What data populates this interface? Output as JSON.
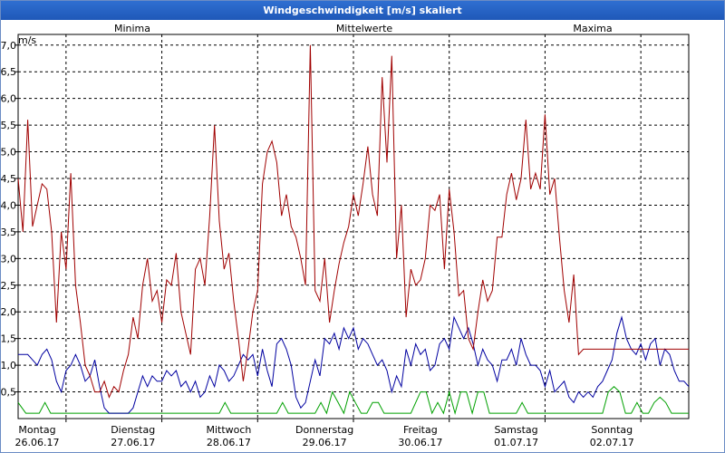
{
  "window": {
    "title": "Windgeschwindigkeit [m/s] skaliert"
  },
  "chart_data": {
    "type": "line",
    "title": "Windgeschwindigkeit [m/s] skaliert",
    "ylabel": "m/s",
    "xlabel": "",
    "ylim": [
      0,
      7.2
    ],
    "grid": true,
    "legend_placement": "top",
    "yticks": [
      "0,5",
      "1,0",
      "1,5",
      "2,0",
      "2,5",
      "3,0",
      "3,5",
      "4,0",
      "4,5",
      "5,0",
      "5,5",
      "6,0",
      "6,5",
      "7,0"
    ],
    "ytick_values": [
      0.5,
      1.0,
      1.5,
      2.0,
      2.5,
      3.0,
      3.5,
      4.0,
      4.5,
      5.0,
      5.5,
      6.0,
      6.5,
      7.0
    ],
    "x_day_labels": [
      {
        "day": "Montag",
        "date": "26.06.17"
      },
      {
        "day": "Dienstag",
        "date": "27.06.17"
      },
      {
        "day": "Mittwoch",
        "date": "28.06.17"
      },
      {
        "day": "Donnerstag",
        "date": "29.06.17"
      },
      {
        "day": "Freitag",
        "date": "30.06.17"
      },
      {
        "day": "Samstag",
        "date": "01.07.17"
      },
      {
        "day": "Sonntag",
        "date": "02.07.17"
      }
    ],
    "x_range_days": [
      0,
      7
    ],
    "series": [
      {
        "name": "Minima",
        "color": "#00a000",
        "x": [
          0.0,
          0.08,
          0.22,
          0.28,
          0.34,
          0.5,
          1.0,
          1.5,
          2.0,
          2.1,
          2.16,
          2.22,
          2.5,
          2.6,
          2.7,
          2.76,
          2.82,
          3.0,
          3.1,
          3.16,
          3.22,
          3.28,
          3.34,
          3.4,
          3.46,
          3.52,
          3.58,
          3.64,
          3.7,
          3.76,
          3.82,
          3.88,
          4.0,
          4.1,
          4.2,
          4.26,
          4.32,
          4.38,
          4.44,
          4.5,
          4.56,
          4.62,
          4.68,
          4.74,
          4.8,
          4.86,
          4.92,
          5.0,
          5.2,
          5.26,
          5.32,
          5.4,
          5.8,
          6.0,
          6.1,
          6.16,
          6.22,
          6.28,
          6.34,
          6.4,
          6.46,
          6.52,
          6.58,
          6.64,
          6.7,
          6.76,
          6.82,
          6.88,
          6.94,
          7.0
        ],
        "y": [
          0.3,
          0.1,
          0.1,
          0.3,
          0.1,
          0.1,
          0.1,
          0.1,
          0.1,
          0.1,
          0.3,
          0.1,
          0.1,
          0.1,
          0.1,
          0.3,
          0.1,
          0.1,
          0.1,
          0.3,
          0.1,
          0.5,
          0.3,
          0.1,
          0.5,
          0.3,
          0.1,
          0.1,
          0.3,
          0.3,
          0.1,
          0.1,
          0.1,
          0.1,
          0.5,
          0.5,
          0.1,
          0.3,
          0.1,
          0.5,
          0.1,
          0.5,
          0.5,
          0.1,
          0.5,
          0.5,
          0.1,
          0.1,
          0.1,
          0.3,
          0.1,
          0.1,
          0.1,
          0.1,
          0.1,
          0.5,
          0.6,
          0.5,
          0.1,
          0.1,
          0.3,
          0.1,
          0.1,
          0.3,
          0.4,
          0.3,
          0.1,
          0.1,
          0.1,
          0.1
        ]
      },
      {
        "name": "Mittelwerte",
        "color": "#0000a0",
        "x": [
          0.0,
          0.05,
          0.1,
          0.15,
          0.2,
          0.25,
          0.3,
          0.35,
          0.4,
          0.45,
          0.5,
          0.55,
          0.6,
          0.65,
          0.7,
          0.75,
          0.8,
          0.85,
          0.9,
          0.95,
          1.0,
          1.05,
          1.1,
          1.15,
          1.2,
          1.25,
          1.3,
          1.35,
          1.4,
          1.45,
          1.5,
          1.55,
          1.6,
          1.65,
          1.7,
          1.75,
          1.8,
          1.85,
          1.9,
          1.95,
          2.0,
          2.05,
          2.1,
          2.15,
          2.2,
          2.25,
          2.3,
          2.35,
          2.4,
          2.45,
          2.5,
          2.55,
          2.6,
          2.65,
          2.7,
          2.75,
          2.8,
          2.85,
          2.9,
          2.95,
          3.0,
          3.05,
          3.1,
          3.15,
          3.2,
          3.25,
          3.3,
          3.35,
          3.4,
          3.45,
          3.5,
          3.55,
          3.6,
          3.65,
          3.7,
          3.75,
          3.8,
          3.85,
          3.9,
          3.95,
          4.0,
          4.05,
          4.1,
          4.15,
          4.2,
          4.25,
          4.3,
          4.35,
          4.4,
          4.45,
          4.5,
          4.55,
          4.6,
          4.65,
          4.7,
          4.75,
          4.8,
          4.85,
          4.9,
          4.95,
          5.0,
          5.05,
          5.1,
          5.15,
          5.2,
          5.25,
          5.3,
          5.35,
          5.4,
          5.45,
          5.5,
          5.55,
          5.6,
          5.65,
          5.7,
          5.75,
          5.8,
          5.85,
          5.9,
          5.95,
          6.0,
          6.05,
          6.1,
          6.15,
          6.2,
          6.25,
          6.3,
          6.35,
          6.4,
          6.45,
          6.5,
          6.55,
          6.6,
          6.65,
          6.7,
          6.75,
          6.8,
          6.85,
          6.9,
          6.95,
          7.0
        ],
        "y": [
          1.2,
          1.2,
          1.2,
          1.1,
          1.0,
          1.2,
          1.3,
          1.1,
          0.7,
          0.5,
          0.9,
          1.0,
          1.2,
          1.0,
          0.7,
          0.8,
          1.1,
          0.6,
          0.2,
          0.1,
          0.1,
          0.1,
          0.1,
          0.1,
          0.2,
          0.5,
          0.8,
          0.6,
          0.8,
          0.7,
          0.7,
          0.9,
          0.8,
          0.9,
          0.6,
          0.7,
          0.5,
          0.7,
          0.4,
          0.5,
          0.8,
          0.6,
          1.0,
          0.9,
          0.7,
          0.8,
          1.0,
          1.2,
          1.1,
          1.2,
          0.8,
          1.3,
          0.9,
          0.6,
          1.4,
          1.5,
          1.3,
          1.0,
          0.4,
          0.2,
          0.3,
          0.7,
          1.1,
          0.8,
          1.5,
          1.4,
          1.6,
          1.3,
          1.7,
          1.5,
          1.7,
          1.3,
          1.5,
          1.4,
          1.2,
          1.0,
          1.1,
          0.9,
          0.5,
          0.8,
          0.6,
          1.3,
          1.0,
          1.4,
          1.2,
          1.3,
          0.9,
          1.0,
          1.4,
          1.5,
          1.3,
          1.9,
          1.7,
          1.5,
          1.7,
          1.4,
          1.0,
          1.3,
          1.1,
          1.0,
          0.7,
          1.1,
          1.1,
          1.3,
          1.0,
          1.5,
          1.2,
          1.0,
          1.0,
          0.9,
          0.6,
          0.9,
          0.5,
          0.6,
          0.7,
          0.4,
          0.3,
          0.5,
          0.4,
          0.5,
          0.4,
          0.6,
          0.7,
          0.9,
          1.1,
          1.6,
          1.9,
          1.5,
          1.3,
          1.2,
          1.4,
          1.1,
          1.4,
          1.5,
          1.0,
          1.3,
          1.2,
          0.9,
          0.7,
          0.7,
          0.6
        ]
      },
      {
        "name": "Maxima",
        "color": "#a00000",
        "x": [
          0.0,
          0.05,
          0.1,
          0.15,
          0.2,
          0.25,
          0.3,
          0.35,
          0.4,
          0.45,
          0.5,
          0.55,
          0.6,
          0.65,
          0.7,
          0.75,
          0.8,
          0.85,
          0.9,
          0.95,
          1.0,
          1.05,
          1.1,
          1.15,
          1.2,
          1.25,
          1.3,
          1.35,
          1.4,
          1.45,
          1.5,
          1.55,
          1.6,
          1.65,
          1.7,
          1.75,
          1.8,
          1.85,
          1.9,
          1.95,
          2.0,
          2.05,
          2.1,
          2.15,
          2.2,
          2.25,
          2.3,
          2.35,
          2.4,
          2.45,
          2.5,
          2.55,
          2.6,
          2.65,
          2.7,
          2.75,
          2.8,
          2.85,
          2.9,
          2.95,
          3.0,
          3.05,
          3.1,
          3.15,
          3.2,
          3.25,
          3.3,
          3.35,
          3.4,
          3.45,
          3.5,
          3.55,
          3.6,
          3.65,
          3.7,
          3.75,
          3.8,
          3.85,
          3.9,
          3.95,
          4.0,
          4.05,
          4.1,
          4.15,
          4.2,
          4.25,
          4.3,
          4.35,
          4.4,
          4.45,
          4.5,
          4.55,
          4.6,
          4.65,
          4.7,
          4.75,
          4.8,
          4.85,
          4.9,
          4.95,
          5.0,
          5.05,
          5.1,
          5.15,
          5.2,
          5.25,
          5.3,
          5.35,
          5.4,
          5.45,
          5.5,
          5.55,
          5.6,
          5.65,
          5.7,
          5.75,
          5.8,
          5.85,
          5.9,
          5.95,
          6.0,
          6.05,
          6.1,
          6.15,
          6.2,
          6.25,
          6.3,
          6.35,
          6.4,
          6.45,
          6.5,
          6.55,
          6.6,
          6.65,
          6.7,
          6.75,
          6.8,
          6.85,
          6.9,
          6.95,
          7.0
        ],
        "y": [
          4.5,
          3.5,
          5.6,
          3.6,
          4.0,
          4.4,
          4.3,
          3.5,
          1.8,
          3.5,
          2.8,
          4.6,
          2.5,
          1.8,
          1.0,
          0.8,
          0.5,
          0.5,
          0.7,
          0.4,
          0.6,
          0.5,
          0.9,
          1.2,
          1.9,
          1.5,
          2.5,
          3.0,
          2.2,
          2.4,
          1.8,
          2.6,
          2.5,
          3.1,
          2.0,
          1.6,
          1.2,
          2.8,
          3.0,
          2.5,
          3.8,
          5.5,
          3.7,
          2.8,
          3.1,
          2.2,
          1.5,
          0.7,
          1.3,
          2.0,
          2.4,
          4.4,
          5.0,
          5.2,
          4.8,
          3.8,
          4.2,
          3.6,
          3.4,
          3.0,
          2.5,
          7.0,
          2.4,
          2.2,
          3.0,
          1.8,
          2.4,
          2.9,
          3.3,
          3.6,
          4.2,
          3.8,
          4.4,
          5.1,
          4.2,
          3.8,
          6.4,
          4.8,
          6.8,
          3.0,
          4.0,
          1.9,
          2.8,
          2.5,
          2.6,
          3.0,
          4.0,
          3.9,
          4.2,
          2.8,
          4.3,
          3.5,
          2.3,
          2.4,
          1.5,
          1.3,
          2.0,
          2.6,
          2.2,
          2.4,
          3.4,
          3.4,
          4.2,
          4.6,
          4.1,
          4.5,
          5.6,
          4.3,
          4.6,
          4.3,
          5.7,
          4.2,
          4.5,
          3.4,
          2.4,
          1.8,
          2.7,
          1.2,
          1.3,
          1.3,
          1.3,
          1.3,
          1.3,
          1.3,
          1.3,
          1.3,
          1.3,
          1.3,
          1.3,
          1.3,
          1.3,
          1.3,
          1.3,
          1.3,
          1.3,
          1.3,
          1.3,
          1.3,
          1.3,
          1.3,
          1.3
        ]
      }
    ]
  }
}
